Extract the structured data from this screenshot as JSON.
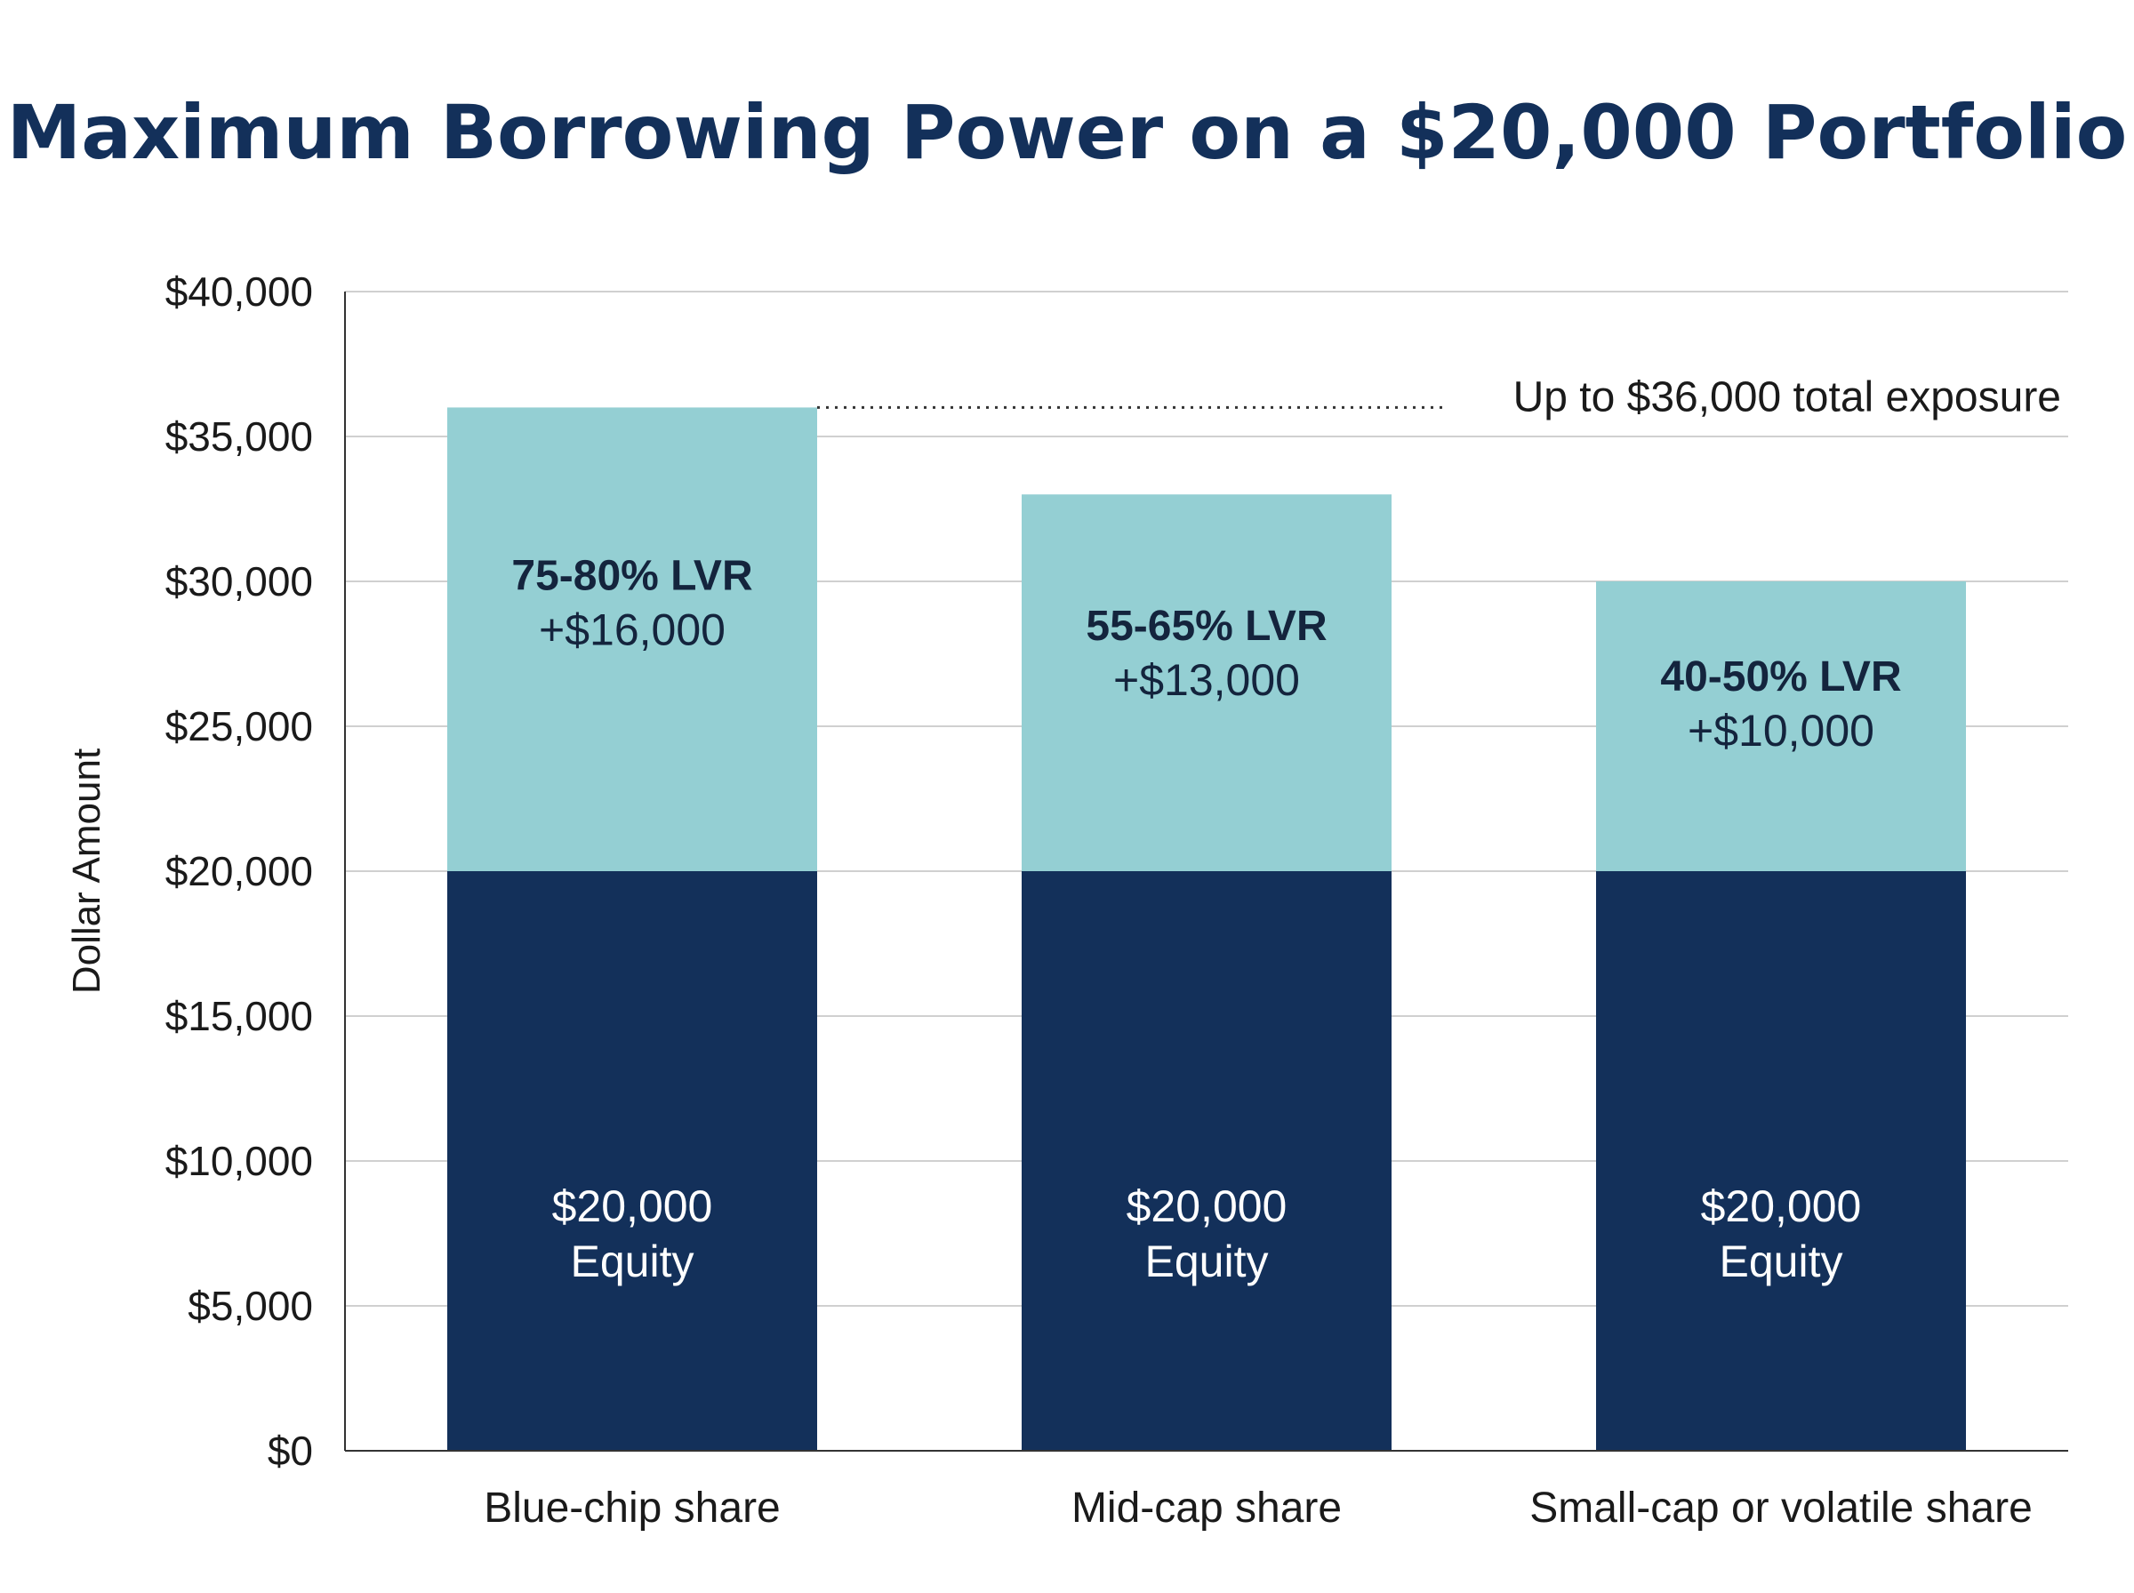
{
  "colors": {
    "equity": "#13305a",
    "borrowing": "#94cfd3",
    "grid": "#d0d0d0",
    "axis": "#333333",
    "title": "#13305a"
  },
  "chart_data": {
    "type": "bar",
    "stacked": true,
    "title": "Maximum Borrowing Power on a $20,000 Portfolio",
    "ylabel": "Dollar Amount",
    "xlabel": "",
    "ylim": [
      0,
      40000
    ],
    "yticks": [
      {
        "value": 0,
        "label": "$0"
      },
      {
        "value": 5000,
        "label": "$5,000"
      },
      {
        "value": 10000,
        "label": "$10,000"
      },
      {
        "value": 15000,
        "label": "$15,000"
      },
      {
        "value": 20000,
        "label": "$20,000"
      },
      {
        "value": 25000,
        "label": "$25,000"
      },
      {
        "value": 30000,
        "label": "$30,000"
      },
      {
        "value": 35000,
        "label": "$35,000"
      },
      {
        "value": 40000,
        "label": "$40,000"
      }
    ],
    "grid": true,
    "categories": [
      "Blue-chip share",
      "Mid-cap share",
      "Small-cap or volatile share"
    ],
    "series": [
      {
        "key": "equity",
        "values": [
          20000,
          20000,
          20000
        ],
        "labels": [
          [
            "$20,000",
            "Equity"
          ],
          [
            "$20,000",
            "Equity"
          ],
          [
            "$20,000",
            "Equity"
          ]
        ]
      },
      {
        "key": "borrowing",
        "values": [
          16000,
          13000,
          10000
        ],
        "labels": [
          [
            "75-80% LVR",
            "+$16,000"
          ],
          [
            "55-65% LVR",
            "+$13,000"
          ],
          [
            "40-50% LVR",
            "+$10,000"
          ]
        ]
      }
    ],
    "annotation": {
      "text": "Up to $36,000 total exposure",
      "value": 36000,
      "category_index": 0
    }
  }
}
